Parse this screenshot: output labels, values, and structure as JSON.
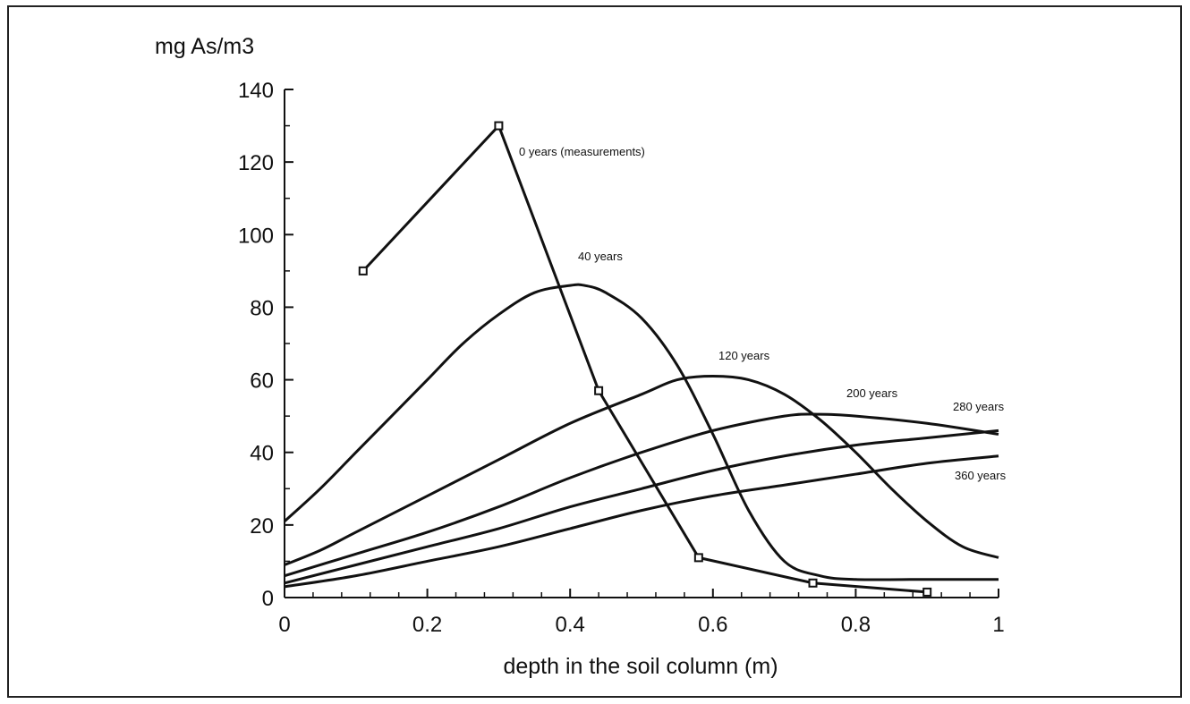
{
  "chart_data": {
    "type": "line",
    "title": "",
    "ylabel": "mg As/m3",
    "xlabel": "depth in the soil column (m)",
    "xlim": [
      0,
      1
    ],
    "ylim": [
      0,
      140
    ],
    "x_ticks": [
      "0",
      "0.2",
      "0.4",
      "0.6",
      "0.8",
      "1"
    ],
    "y_ticks": [
      "0",
      "20",
      "40",
      "60",
      "80",
      "100",
      "120",
      "140"
    ],
    "grid": false,
    "legend": "none",
    "series": [
      {
        "name": "0 years (measurements)",
        "marker": "square",
        "x": [
          0.11,
          0.3,
          0.44,
          0.58,
          0.74,
          0.9
        ],
        "y": [
          90,
          130,
          57,
          11,
          4,
          1.5
        ]
      },
      {
        "name": "40 years",
        "x": [
          0,
          0.05,
          0.1,
          0.15,
          0.2,
          0.25,
          0.3,
          0.35,
          0.4,
          0.42,
          0.45,
          0.5,
          0.55,
          0.6,
          0.65,
          0.7,
          0.75,
          0.8,
          0.9,
          1.0
        ],
        "y": [
          21,
          30,
          40,
          50,
          60,
          70,
          78,
          84,
          86,
          86,
          84,
          77,
          64,
          45,
          24,
          10,
          6,
          5,
          5,
          5
        ]
      },
      {
        "name": "120 years",
        "x": [
          0,
          0.05,
          0.1,
          0.2,
          0.3,
          0.4,
          0.5,
          0.55,
          0.6,
          0.65,
          0.7,
          0.75,
          0.8,
          0.85,
          0.9,
          0.95,
          1.0
        ],
        "y": [
          9,
          13,
          18,
          28,
          38,
          48,
          56,
          60,
          61,
          60,
          56,
          49,
          40,
          30,
          21,
          14,
          11
        ]
      },
      {
        "name": "200 years",
        "x": [
          0,
          0.1,
          0.2,
          0.3,
          0.4,
          0.5,
          0.6,
          0.7,
          0.75,
          0.8,
          0.9,
          1.0
        ],
        "y": [
          6,
          12,
          18,
          25,
          33,
          40,
          46,
          50,
          50.5,
          50,
          48,
          45
        ]
      },
      {
        "name": "280 years",
        "x": [
          0,
          0.1,
          0.2,
          0.3,
          0.4,
          0.5,
          0.6,
          0.7,
          0.8,
          0.9,
          1.0
        ],
        "y": [
          4,
          9,
          14,
          19,
          25,
          30,
          35,
          39,
          42,
          44,
          46
        ]
      },
      {
        "name": "360 years",
        "x": [
          0,
          0.1,
          0.2,
          0.3,
          0.4,
          0.5,
          0.6,
          0.7,
          0.8,
          0.9,
          1.0
        ],
        "y": [
          3,
          6,
          10,
          14,
          19,
          24,
          28,
          31,
          34,
          37,
          39
        ]
      }
    ]
  }
}
